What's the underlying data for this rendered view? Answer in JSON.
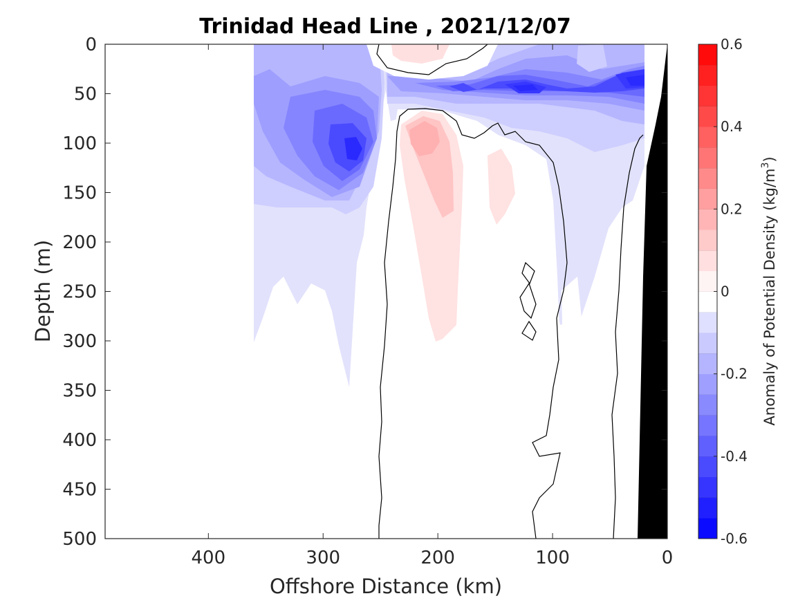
{
  "chart_data": {
    "type": "heatmap",
    "title": "Trinidad Head Line , 2021/12/07",
    "xlabel": "Offshore Distance (km)",
    "ylabel": "Depth (m)",
    "xlim": [
      490,
      0
    ],
    "ylim": [
      0,
      500
    ],
    "x_reversed": true,
    "y_reversed": true,
    "x_ticks": [
      400,
      300,
      200,
      100,
      0
    ],
    "x_tick_labels": [
      "400",
      "300",
      "200",
      "100",
      "0"
    ],
    "y_ticks": [
      0,
      50,
      100,
      150,
      200,
      250,
      300,
      350,
      400,
      450,
      500
    ],
    "y_tick_labels": [
      "0",
      "50",
      "100",
      "150",
      "200",
      "250",
      "300",
      "350",
      "400",
      "450",
      "500"
    ],
    "grid": false,
    "colorbar": {
      "label_prefix": "Anomaly of Potential Density (kg/m",
      "label_exp": "3",
      "label_suffix": ")",
      "range": [
        -0.6,
        0.6
      ],
      "step": 0.05,
      "ticks": [
        0.6,
        0.4,
        0.2,
        0,
        -0.2,
        -0.4,
        -0.6
      ],
      "tick_labels": [
        "0.6",
        "0.4",
        "0.2",
        "0",
        "-0.2",
        "-0.4",
        "-0.6"
      ],
      "colormap": "blue-white-red",
      "neg_color": "#0000ff",
      "pos_color": "#ff0000"
    },
    "data_extent_km": [
      360,
      20
    ],
    "max_anomaly": 0.1,
    "min_anomaly": -0.55,
    "features": [
      {
        "kind": "negative_anomaly",
        "depth_range_m": [
          0,
          300
        ],
        "distance_range_km": [
          360,
          230
        ],
        "min_value": -0.5,
        "center_km": 272,
        "center_depth_m": 105
      },
      {
        "kind": "negative_anomaly",
        "depth_range_m": [
          0,
          80
        ],
        "distance_range_km": [
          230,
          20
        ],
        "min_value": -0.55,
        "center_km": 125,
        "center_depth_m": 45
      },
      {
        "kind": "positive_anomaly",
        "depth_range_m": [
          70,
          300
        ],
        "distance_range_km": [
          235,
          160
        ],
        "max_value": 0.1,
        "center_km": 215,
        "center_depth_m": 90
      },
      {
        "kind": "positive_anomaly",
        "depth_range_m": [
          0,
          30
        ],
        "distance_range_km": [
          240,
          180
        ],
        "max_value": 0.1,
        "center_km": 210,
        "center_depth_m": 8
      }
    ],
    "bathymetry": {
      "color": "#000000",
      "seafloor": [
        [
          0,
          5
        ],
        [
          10,
          90
        ],
        [
          20,
          110
        ],
        [
          27,
          500
        ]
      ]
    },
    "contour_lines": {
      "level": 0,
      "color": "#000000"
    }
  }
}
